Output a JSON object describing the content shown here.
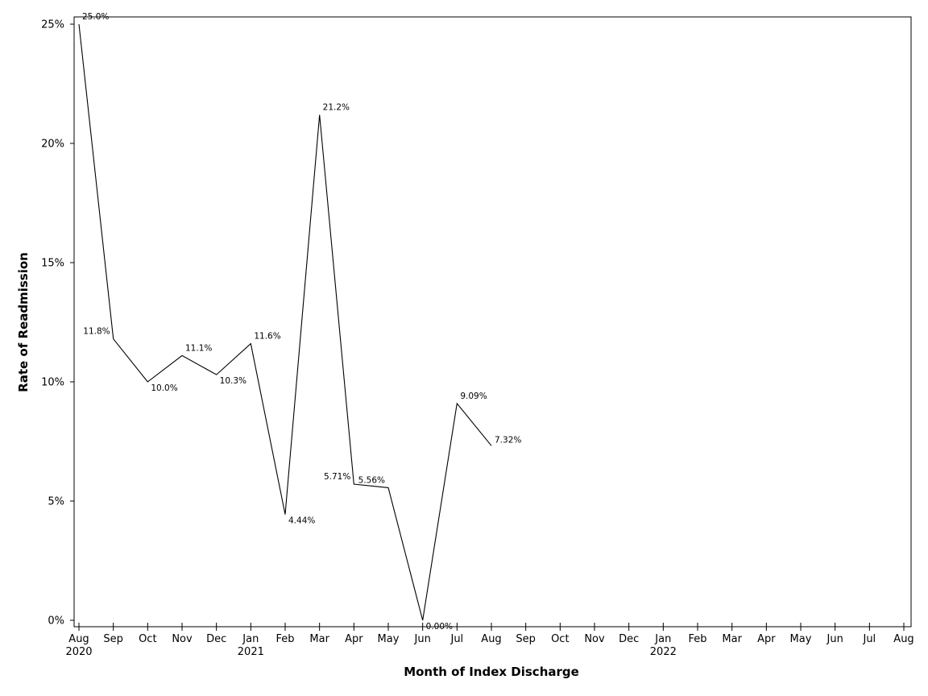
{
  "chart_data": {
    "type": "line",
    "xlabel": "Month of Index Discharge",
    "ylabel": "Rate of Readmission",
    "x": [
      "2020-08",
      "2020-09",
      "2020-10",
      "2020-11",
      "2020-12",
      "2021-01",
      "2021-02",
      "2021-03",
      "2021-04",
      "2021-05",
      "2021-06",
      "2021-07",
      "2021-08"
    ],
    "series": [
      {
        "values": [
          25.0,
          11.8,
          10.0,
          11.1,
          10.3,
          11.6,
          4.44,
          21.2,
          5.71,
          5.56,
          0.0,
          9.09,
          7.32
        ],
        "labels": [
          "25.0%",
          "11.8%",
          "10.0%",
          "11.1%",
          "10.3%",
          "11.6%",
          "4.44%",
          "21.2%",
          "5.71%",
          "5.56%",
          "0.00%",
          "9.09%",
          "7.32%"
        ],
        "color": "#000000"
      }
    ],
    "ylim": [
      0,
      25
    ],
    "yticks": [
      0,
      5,
      10,
      15,
      20,
      25
    ],
    "ytick_labels": [
      "0%",
      "5%",
      "10%",
      "15%",
      "20%",
      "25%"
    ],
    "xlim": [
      "2020-08",
      "2022-08"
    ],
    "xtick_labels": [
      "Aug",
      "Sep",
      "Oct",
      "Nov",
      "Dec",
      "Jan",
      "Feb",
      "Mar",
      "Apr",
      "May",
      "Jun",
      "Jul",
      "Aug",
      "Sep",
      "Oct",
      "Nov",
      "Dec",
      "Jan",
      "Feb",
      "Mar",
      "Apr",
      "May",
      "Jun",
      "Jul",
      "Aug"
    ],
    "xtick_year_labels": [
      {
        "month_index": 0,
        "label": "2020"
      },
      {
        "month_index": 5,
        "label": "2021"
      },
      {
        "month_index": 17,
        "label": "2022"
      }
    ],
    "grid": false,
    "legend": "none"
  }
}
